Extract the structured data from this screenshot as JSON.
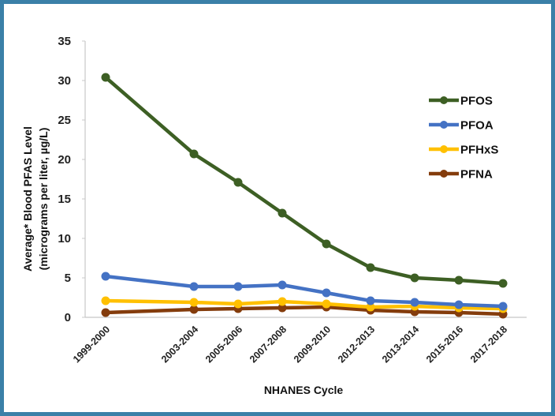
{
  "chart_data": {
    "type": "line",
    "title": "",
    "xlabel": "NHANES Cycle",
    "ylabel_line1": "Average* Blood PFAS Level",
    "ylabel_line2": "(micrograms per liter, µg/L)",
    "categories": [
      "1999-2000",
      "2003-2004",
      "2005-2006",
      "2007-2008",
      "2009-2010",
      "2012-2013",
      "2013-2014",
      "2015-2016",
      "2017-2018"
    ],
    "category_slots": [
      0,
      2,
      3,
      4,
      5,
      6,
      7,
      8,
      9
    ],
    "ylim": [
      0,
      35
    ],
    "yticks": [
      0,
      5,
      10,
      15,
      20,
      25,
      30,
      35
    ],
    "grid": false,
    "legend_position": "right",
    "series": [
      {
        "name": "PFOS",
        "color": "#3d5f24",
        "values": [
          30.4,
          20.7,
          17.1,
          13.2,
          9.3,
          6.3,
          5.0,
          4.7,
          4.3
        ]
      },
      {
        "name": "PFOA",
        "color": "#4472c4",
        "values": [
          5.2,
          3.9,
          3.9,
          4.1,
          3.1,
          2.1,
          1.9,
          1.6,
          1.4
        ]
      },
      {
        "name": "PFHxS",
        "color": "#ffc000",
        "values": [
          2.1,
          1.9,
          1.7,
          2.0,
          1.7,
          1.3,
          1.4,
          1.2,
          1.1
        ]
      },
      {
        "name": "PFNA",
        "color": "#843c0c",
        "values": [
          0.6,
          1.0,
          1.1,
          1.2,
          1.3,
          0.9,
          0.7,
          0.6,
          0.4
        ]
      }
    ]
  },
  "frame": {
    "border_color": "#3b80a8"
  }
}
